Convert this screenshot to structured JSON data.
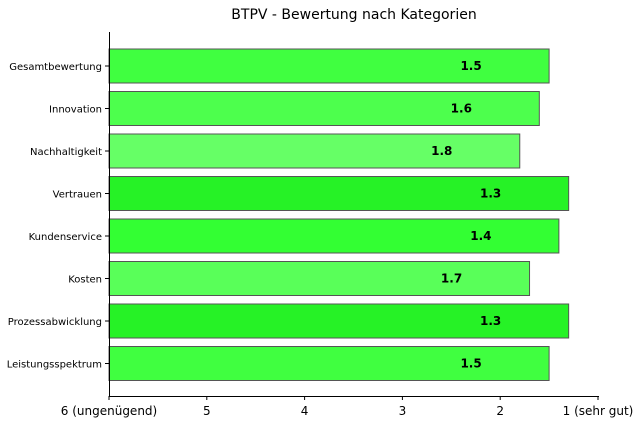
{
  "chart_data": {
    "type": "bar",
    "orientation": "horizontal",
    "title": "BTPV - Bewertung nach Kategorien",
    "xlabel": "",
    "ylabel": "",
    "categories": [
      "Gesamtbewertung",
      "Innovation",
      "Nachhaltigkeit",
      "Vertrauen",
      "Kundenservice",
      "Kosten",
      "Prozessabwicklung",
      "Leistungsspektrum"
    ],
    "values": [
      1.5,
      1.6,
      1.8,
      1.3,
      1.4,
      1.7,
      1.3,
      1.5
    ],
    "value_labels": [
      "1.5",
      "1.6",
      "1.8",
      "1.3",
      "1.4",
      "1.7",
      "1.3",
      "1.5"
    ],
    "bar_colors": [
      "#40ff40",
      "#4dff4d",
      "#66ff66",
      "#26f226",
      "#33ff33",
      "#59ff59",
      "#26f226",
      "#40ff40"
    ],
    "x_axis": {
      "inverted": true,
      "xlim": [
        6,
        1
      ],
      "ticks": [
        6,
        5,
        4,
        3,
        2,
        1
      ],
      "tick_labels": [
        "6 (ungenügend)",
        "5",
        "4",
        "3",
        "2",
        "1 (sehr gut)"
      ]
    },
    "grid": false
  }
}
